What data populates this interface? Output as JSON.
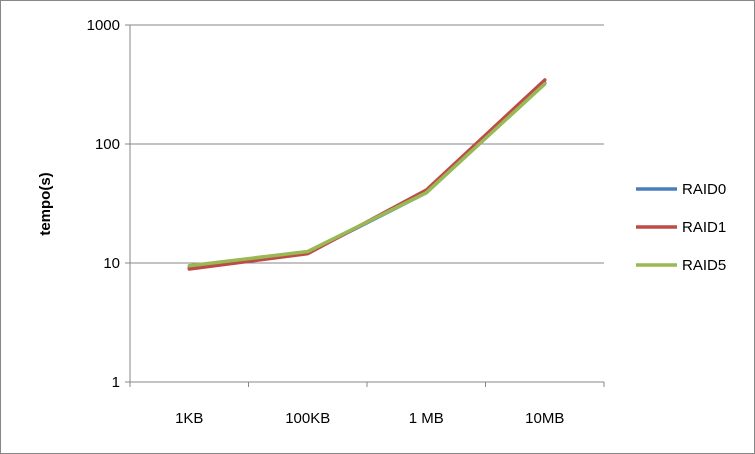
{
  "chart_data": {
    "type": "line",
    "title": "",
    "xlabel": "",
    "ylabel": "tempo(s)",
    "yscale": "log",
    "ylim": [
      1,
      1000
    ],
    "yticks": [
      {
        "value": 1,
        "label": "1"
      },
      {
        "value": 10,
        "label": "10"
      },
      {
        "value": 100,
        "label": "100"
      },
      {
        "value": 1000,
        "label": "1000"
      }
    ],
    "categories": [
      "1KB",
      "100KB",
      "1 MB",
      "10MB"
    ],
    "grid": true,
    "legend_position": "right",
    "series": [
      {
        "name": "RAID0",
        "color": "#4A7EBB",
        "values": [
          9.2,
          12.2,
          39,
          325
        ]
      },
      {
        "name": "RAID1",
        "color": "#BE4B48",
        "values": [
          8.9,
          12.0,
          41,
          345
        ]
      },
      {
        "name": "RAID5",
        "color": "#98B954",
        "values": [
          9.5,
          12.5,
          39,
          320
        ]
      }
    ]
  }
}
